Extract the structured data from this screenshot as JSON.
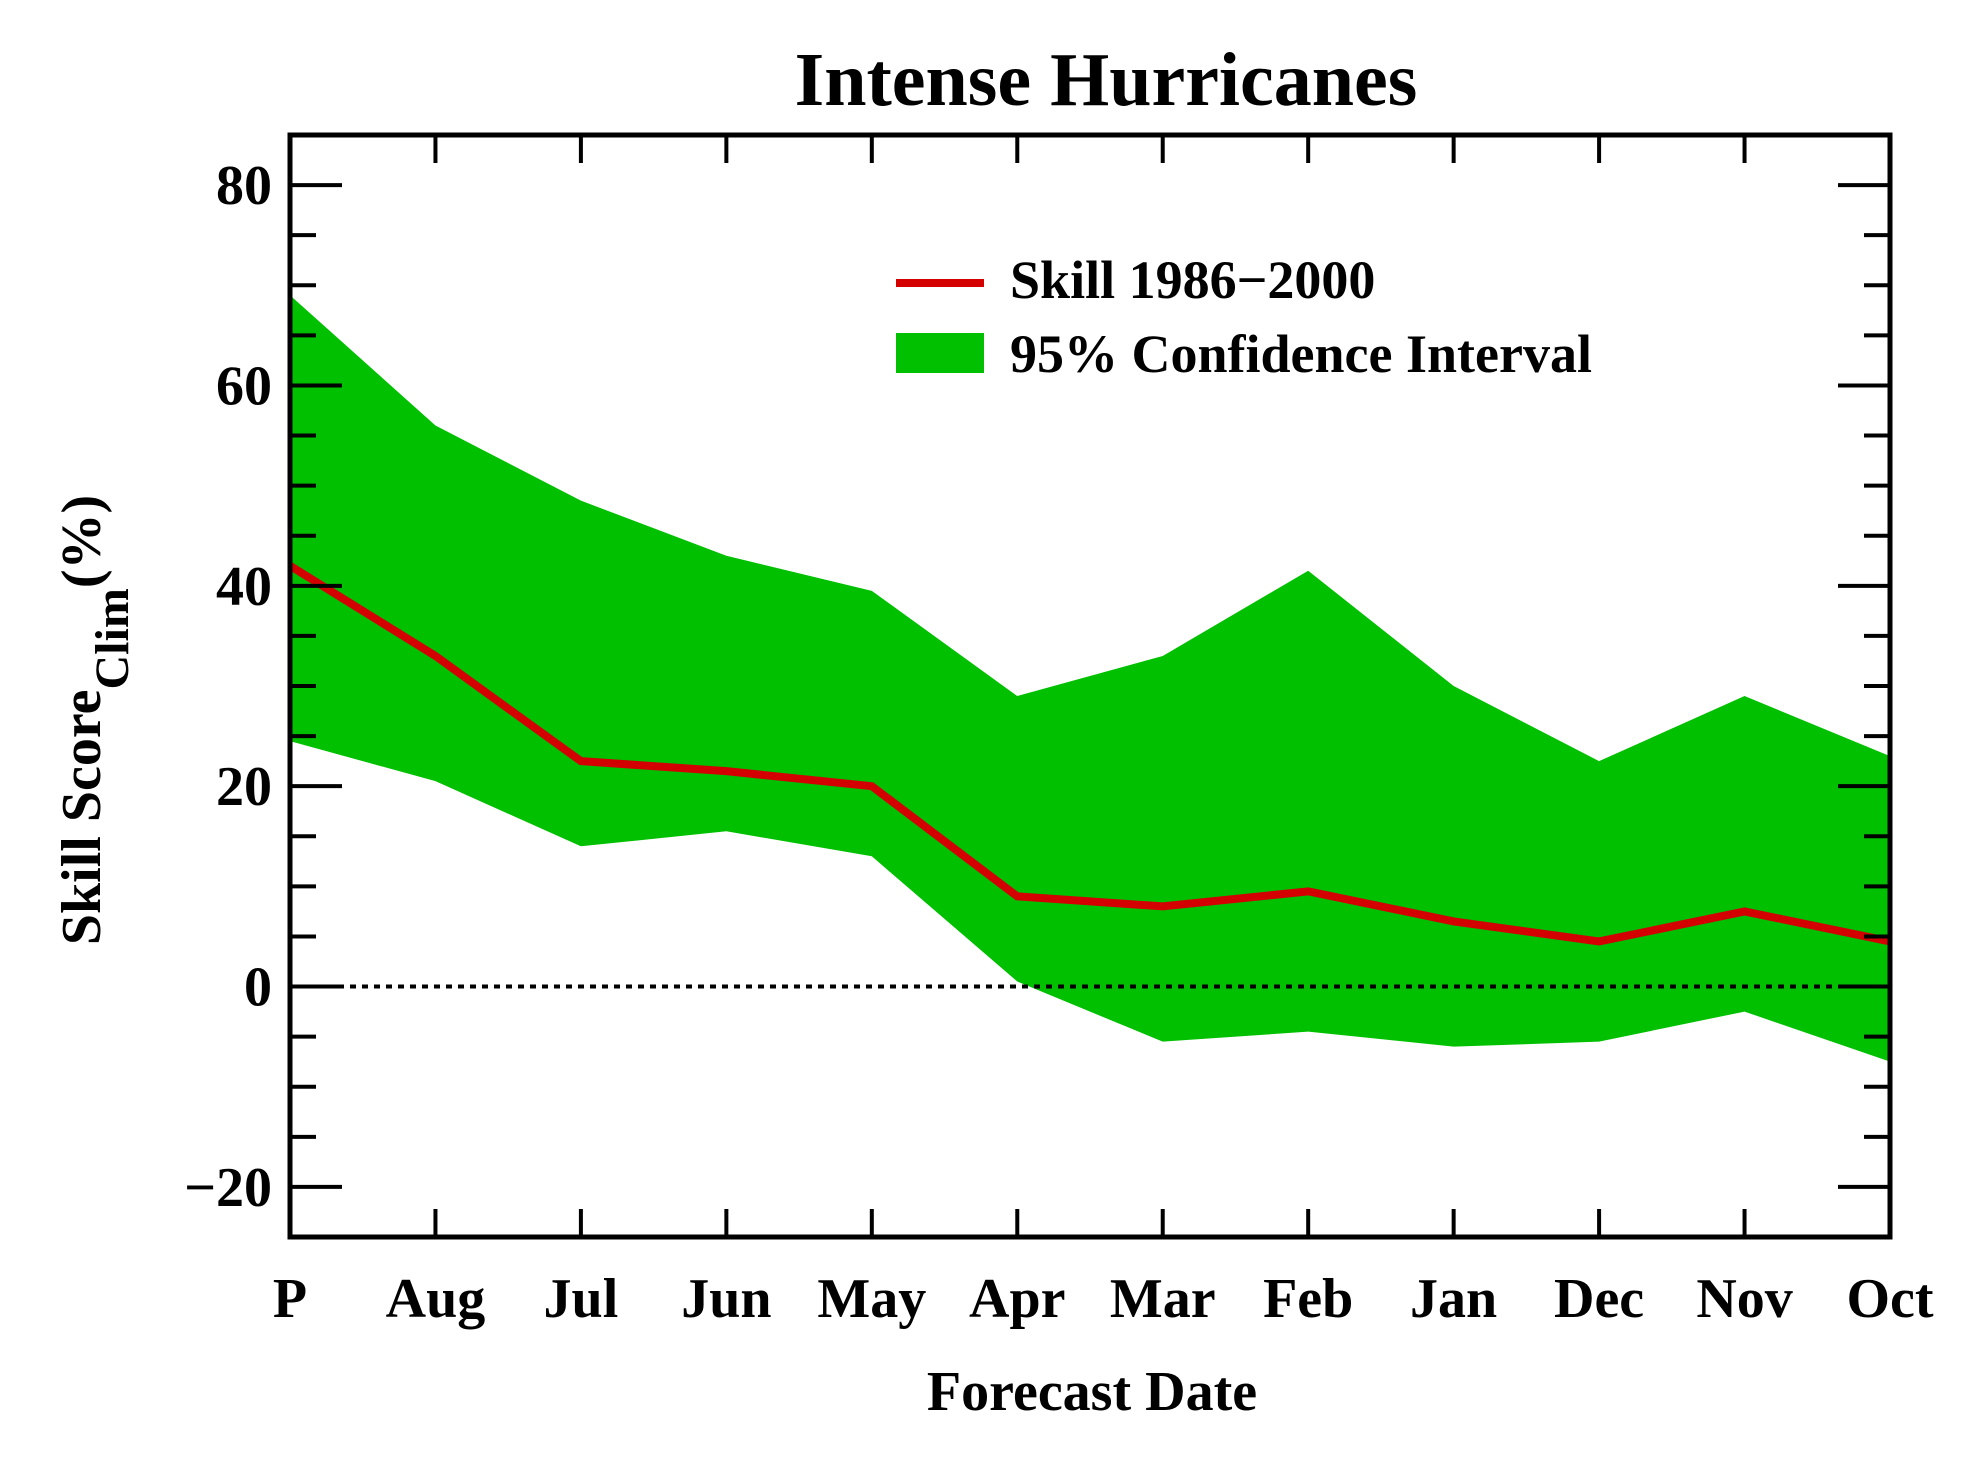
{
  "chart_data": {
    "type": "area",
    "title": "Intense Hurricanes",
    "xlabel": "Forecast Date",
    "ylabel": {
      "main": "Skill Score",
      "subscript": "Clim",
      "suffix": "(%)"
    },
    "categories": [
      "P",
      "Aug",
      "Jul",
      "Jun",
      "May",
      "Apr",
      "Mar",
      "Feb",
      "Jan",
      "Dec",
      "Nov",
      "Oct"
    ],
    "ylim": [
      -25,
      85
    ],
    "yticks": [
      -20,
      0,
      20,
      40,
      60,
      80
    ],
    "yticks_labels": [
      "−20",
      "0",
      "20",
      "40",
      "60",
      "80"
    ],
    "zero_line": "dotted",
    "legend_position": "top-right",
    "series": [
      {
        "name": "Skill 1986−2000",
        "kind": "line",
        "color": "#d40000",
        "values": [
          42,
          33,
          22.5,
          21.5,
          20,
          9,
          8,
          9.5,
          6.5,
          4.5,
          7.5,
          4.5
        ]
      },
      {
        "name": "95% Confidence Interval",
        "kind": "band",
        "color": "#00c000",
        "upper": [
          69,
          56,
          48.5,
          43,
          39.5,
          29,
          33,
          41.5,
          30,
          22.5,
          29,
          23
        ],
        "lower": [
          24.5,
          20.5,
          14,
          15.5,
          13,
          0.5,
          -5.5,
          -4.5,
          -6,
          -5.5,
          -2.5,
          -7.5
        ]
      }
    ]
  }
}
